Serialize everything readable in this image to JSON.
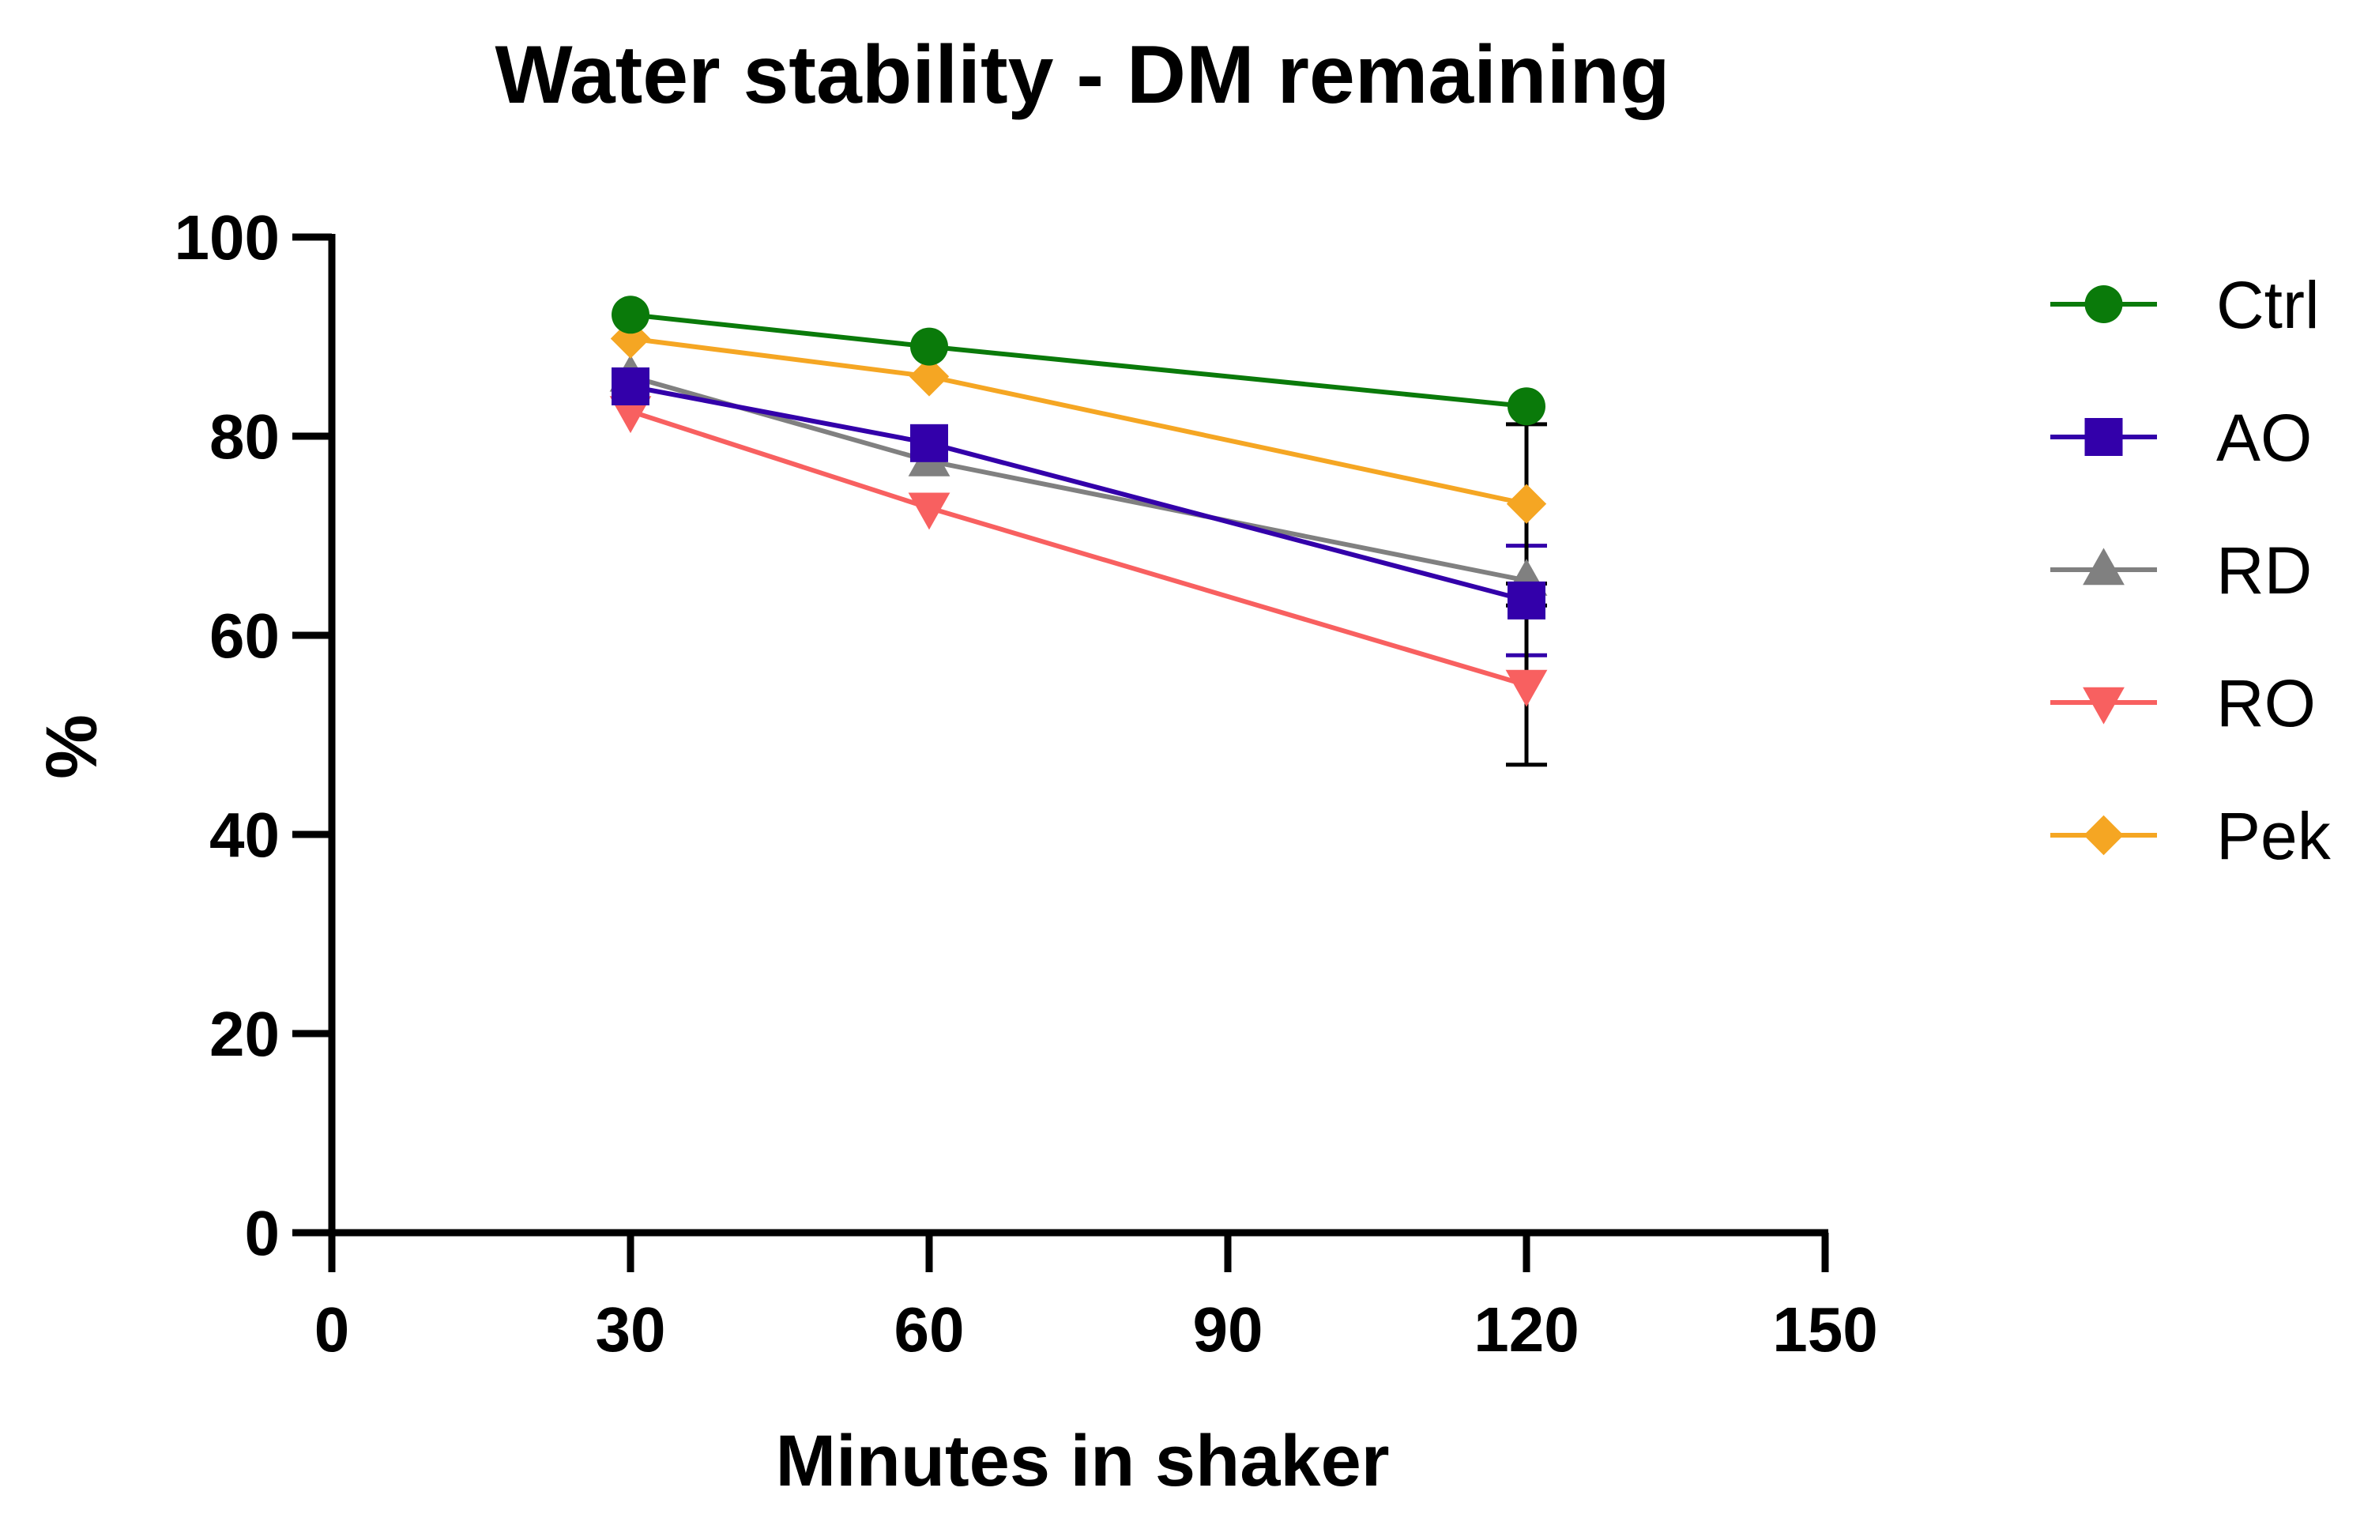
{
  "chart_data": {
    "type": "line",
    "title": "Water stability - DM remaining",
    "xlabel": "Minutes in shaker",
    "ylabel": "%",
    "xlim": [
      0,
      150
    ],
    "ylim": [
      0,
      100
    ],
    "xticks": [
      0,
      30,
      60,
      90,
      120,
      150
    ],
    "yticks": [
      0,
      20,
      40,
      60,
      80,
      100
    ],
    "x": [
      30,
      60,
      120
    ],
    "legend_position": "right",
    "grid": false,
    "series": [
      {
        "name": "Ctrl",
        "color": "#0a7a0a",
        "marker": "circle",
        "values": [
          92.2,
          89.0,
          83.0
        ],
        "error": [
          0,
          0,
          0
        ]
      },
      {
        "name": "AO",
        "color": "#3300aa",
        "marker": "square",
        "values": [
          85.0,
          79.3,
          63.5
        ],
        "error": [
          0,
          0,
          5.5
        ]
      },
      {
        "name": "RD",
        "color": "#808080",
        "marker": "triangle-up",
        "values": [
          86.0,
          77.5,
          65.5
        ],
        "error": [
          0,
          0,
          0
        ]
      },
      {
        "name": "RO",
        "color": "#f86060",
        "marker": "triangle-down",
        "values": [
          82.5,
          72.8,
          55.0
        ],
        "error": [
          0,
          0,
          8.0
        ]
      },
      {
        "name": "Pek",
        "color": "#f5a623",
        "marker": "diamond",
        "values": [
          89.8,
          86.0,
          73.2
        ],
        "error": [
          0,
          0,
          8.0
        ]
      }
    ]
  }
}
